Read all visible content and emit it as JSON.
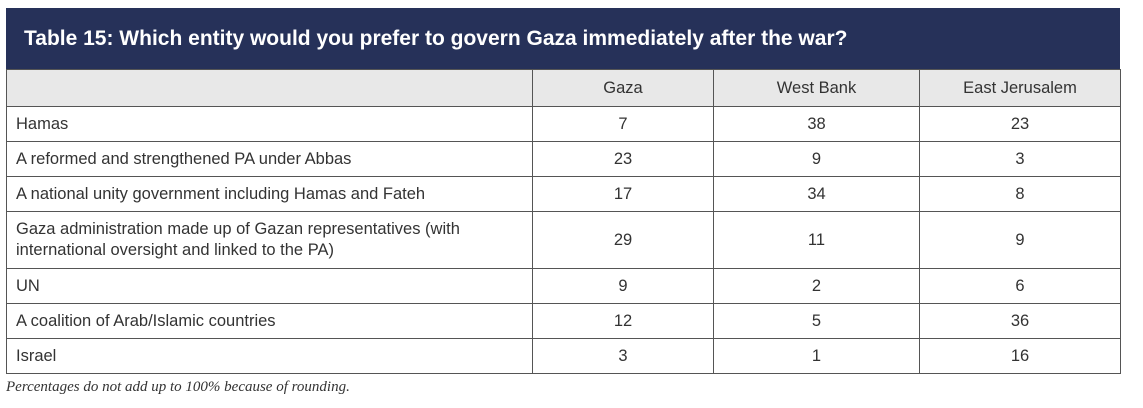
{
  "title": "Table 15: Which entity would you prefer to govern Gaza immediately after the war?",
  "columns": [
    "",
    "Gaza",
    "West Bank",
    "East Jerusalem"
  ],
  "rows": [
    {
      "label": "Hamas",
      "gaza": "7",
      "west_bank": "38",
      "east_jerusalem": "23"
    },
    {
      "label": "A reformed and strengthened PA under Abbas",
      "gaza": "23",
      "west_bank": "9",
      "east_jerusalem": "3"
    },
    {
      "label": "A national unity government including Hamas and Fateh",
      "gaza": "17",
      "west_bank": "34",
      "east_jerusalem": "8"
    },
    {
      "label": "Gaza administration made up of Gazan representatives (with international oversight and linked to the PA)",
      "gaza": "29",
      "west_bank": "11",
      "east_jerusalem": "9"
    },
    {
      "label": "UN",
      "gaza": "9",
      "west_bank": "2",
      "east_jerusalem": "6"
    },
    {
      "label": "A coalition of Arab/Islamic countries",
      "gaza": "12",
      "west_bank": "5",
      "east_jerusalem": "36"
    },
    {
      "label": "Israel",
      "gaza": "3",
      "west_bank": "1",
      "east_jerusalem": "16"
    }
  ],
  "footnote": "Percentages do not add up to 100% because of rounding.",
  "colors": {
    "title_bg": "#263159",
    "header_bg": "#e8e8e8",
    "border": "#555555"
  }
}
